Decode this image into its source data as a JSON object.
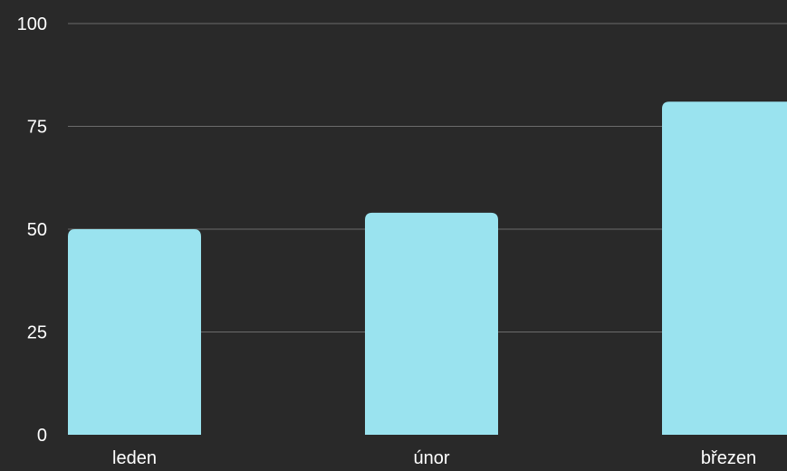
{
  "chart_data": {
    "type": "bar",
    "categories": [
      "leden",
      "únor",
      "březen"
    ],
    "values": [
      50,
      54,
      81
    ],
    "yticks": [
      0,
      25,
      50,
      75,
      100
    ],
    "ylim": [
      0,
      100
    ],
    "grid": true,
    "legend": "none",
    "title": "",
    "xlabel": "",
    "ylabel": ""
  },
  "colors": {
    "background": "#292929",
    "bar": "#9ae3ef",
    "grid": "#6b6b6b",
    "text": "#ffffff"
  }
}
